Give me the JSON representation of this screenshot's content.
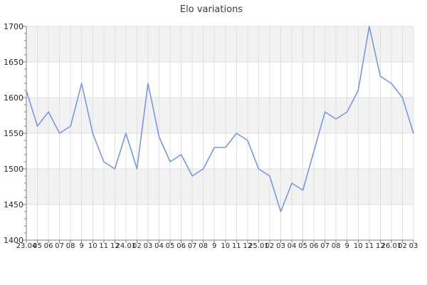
{
  "chart_data": {
    "type": "line",
    "title": "Elo variations",
    "x_labels": [
      "23.04",
      "05",
      "06",
      "07",
      "08",
      "9",
      "10",
      "11",
      "12",
      "24.01",
      "02",
      "03",
      "04",
      "05",
      "06",
      "07",
      "08",
      "9",
      "10",
      "11",
      "12",
      "25.01",
      "02",
      "03",
      "04",
      "05",
      "06",
      "07",
      "08",
      "9",
      "10",
      "11",
      "12",
      "26.01",
      "02",
      "03"
    ],
    "values": [
      1610,
      1560,
      1580,
      1550,
      1560,
      1620,
      1550,
      1510,
      1500,
      1550,
      1500,
      1620,
      1545,
      1510,
      1520,
      1490,
      1500,
      1530,
      1530,
      1550,
      1540,
      1500,
      1490,
      1440,
      1480,
      1470,
      1525,
      1580,
      1570,
      1580,
      1610,
      1700,
      1630,
      1620,
      1600,
      1550
    ],
    "ylim": [
      1400,
      1700
    ],
    "y_tick_step": 50,
    "y_minor_step": 10,
    "legend": "none",
    "grid": "on",
    "colors": {
      "line": "#7897e6",
      "band_fill": "#f2f2f2",
      "grid": "#e0e0e0",
      "axis": "#808080",
      "labels": "#262626",
      "title": "#3c3c3c"
    }
  }
}
